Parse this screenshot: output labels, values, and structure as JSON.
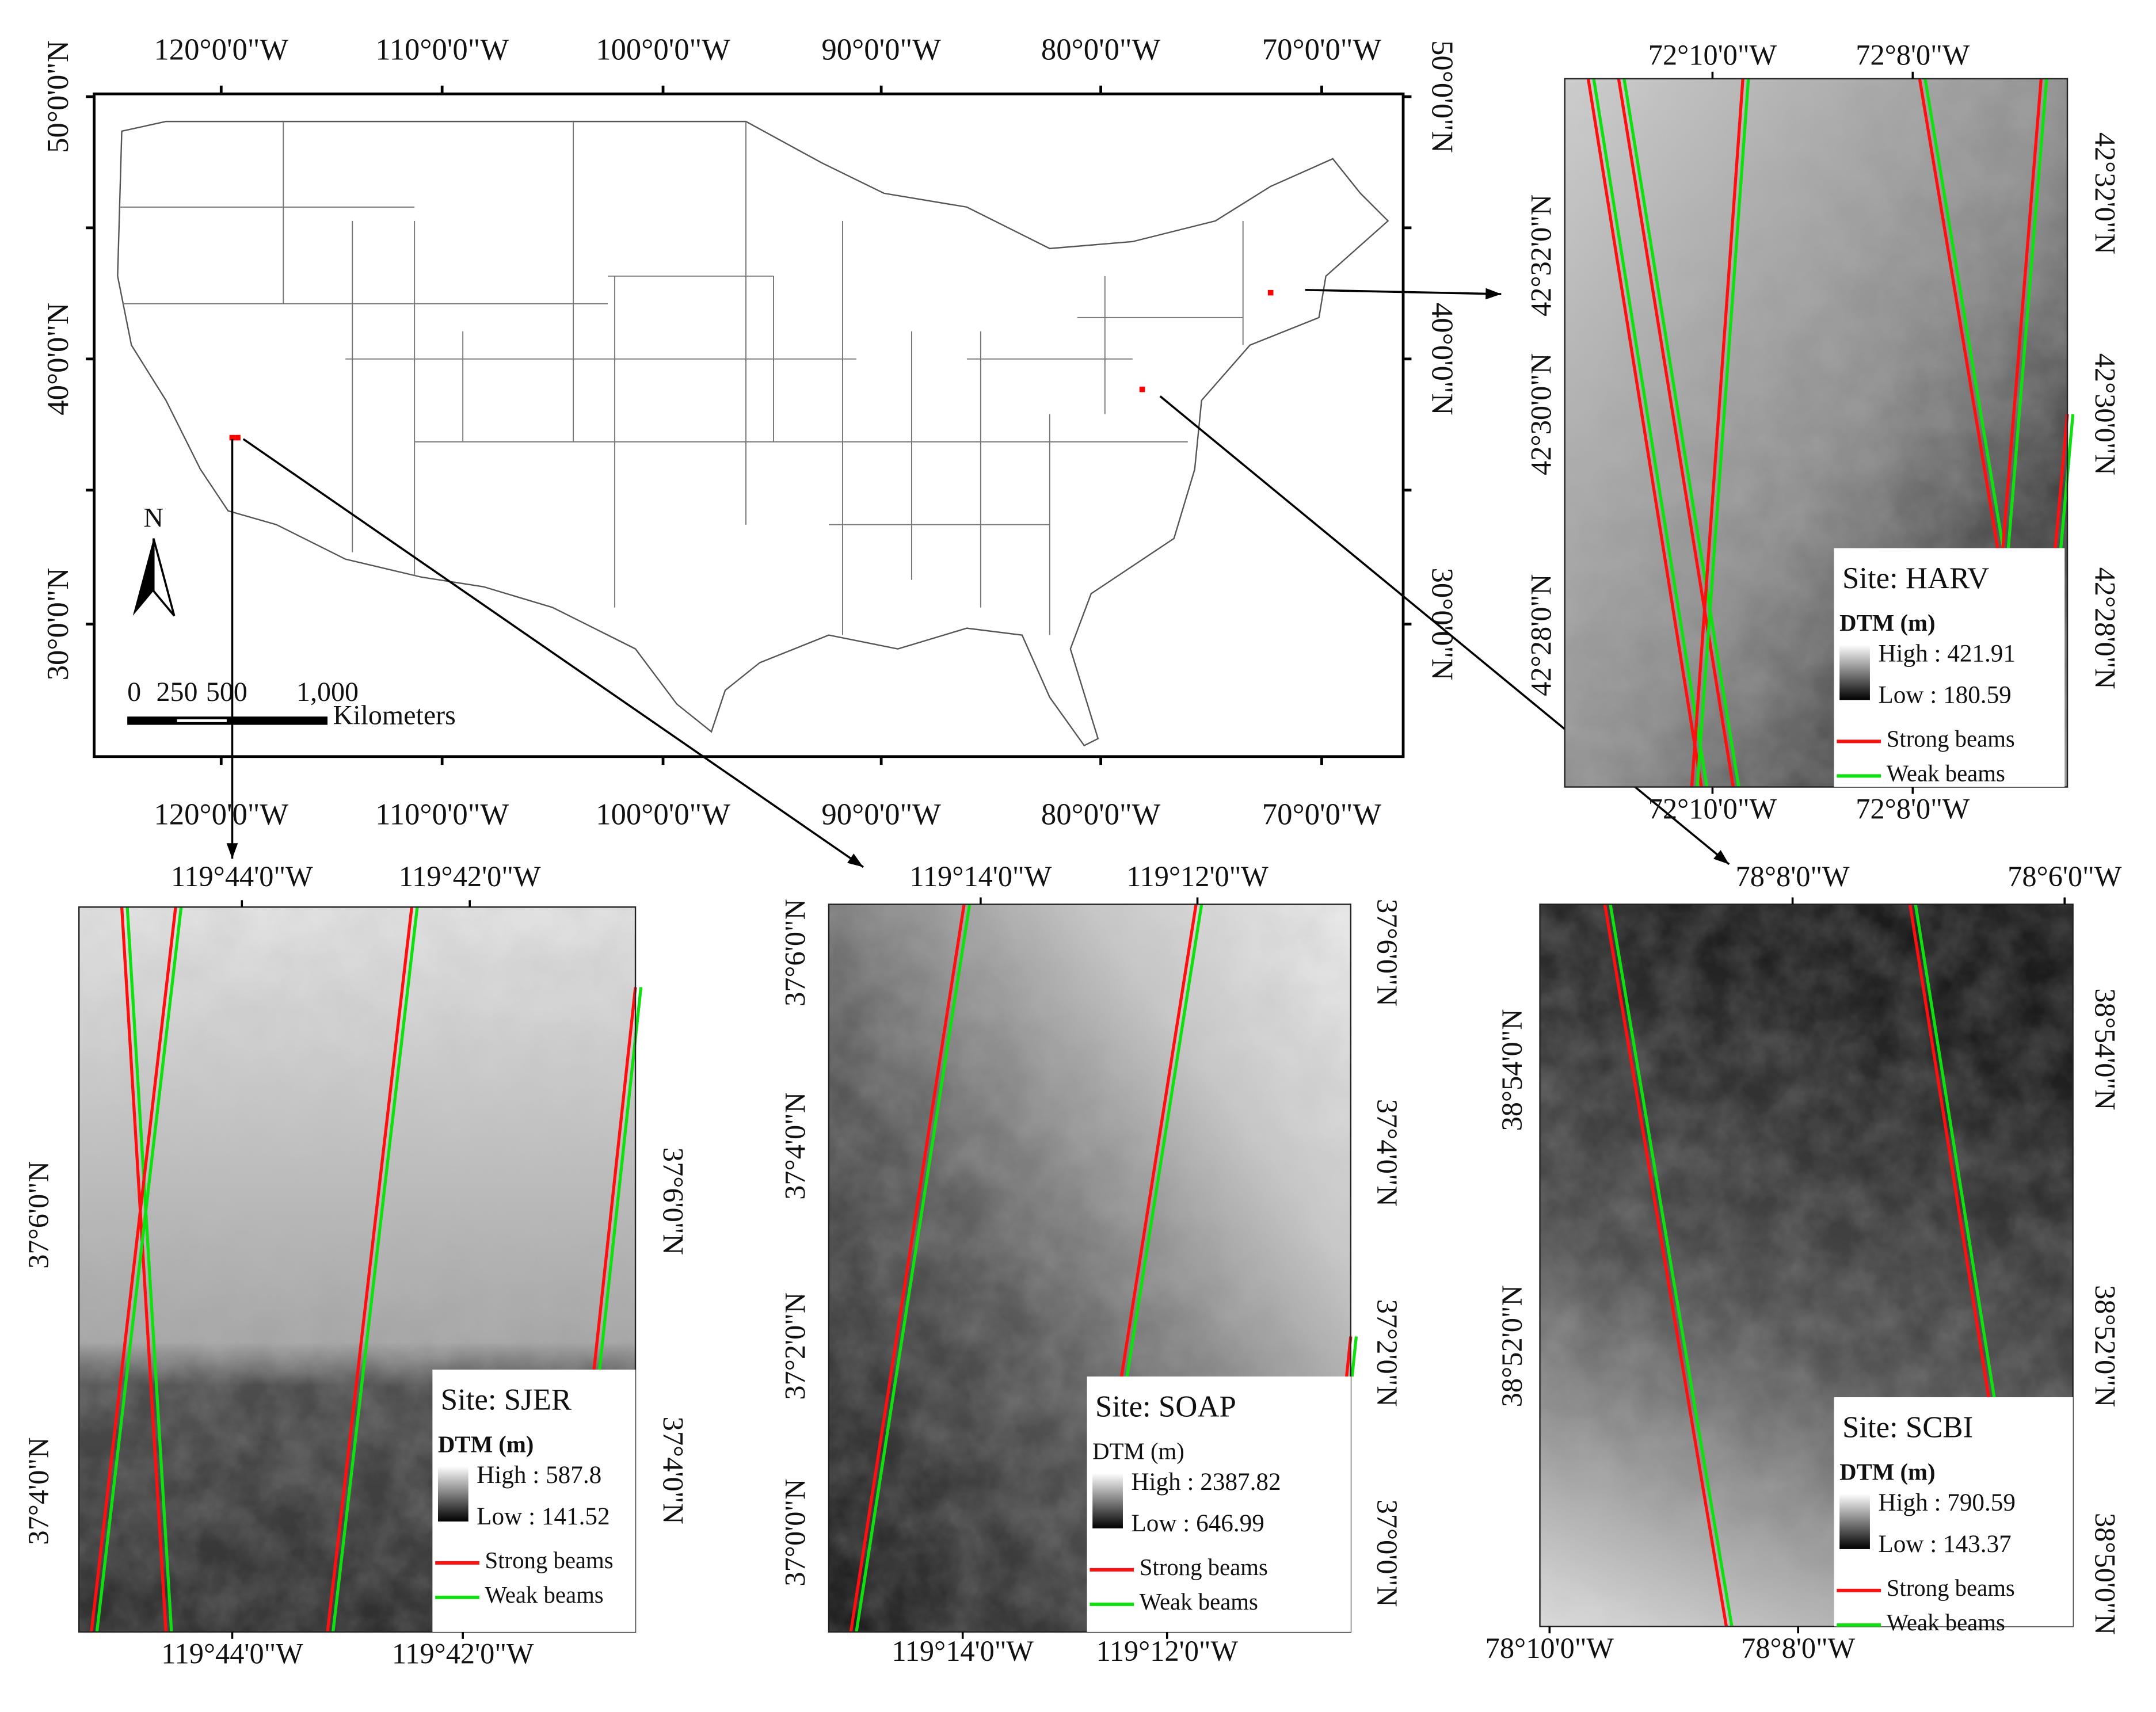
{
  "overview_map": {
    "x_labels": [
      "120°0'0\"W",
      "110°0'0\"W",
      "100°0'0\"W",
      "90°0'0\"W",
      "80°0'0\"W",
      "70°0'0\"W"
    ],
    "y_labels": [
      "50°0'0\"N",
      "40°0'0\"N",
      "30°0'0\"N"
    ],
    "north_arrow": "N",
    "scale_bar": {
      "labels": [
        "0",
        "250",
        "500",
        "1,000"
      ],
      "unit": "Kilometers"
    }
  },
  "panels": [
    {
      "site": "Site: HARV",
      "legend_title": "DTM (m)",
      "high": "High : 421.91",
      "low": "Low : 180.59",
      "strong": "Strong beams",
      "weak": "Weak beams",
      "top_labels": [
        "72°10'0\"W",
        "72°8'0\"W"
      ],
      "bottom_labels": [
        "72°10'0\"W",
        "72°8'0\"W"
      ],
      "left_labels": [
        "42°32'0\"N",
        "42°30'0\"N",
        "42°28'0\"N"
      ],
      "right_labels": [
        "42°32'0\"N",
        "42°30'0\"N",
        "42°28'0\"N"
      ]
    },
    {
      "site": "Site: SJER",
      "legend_title": "DTM (m)",
      "high": "High : 587.8",
      "low": "Low : 141.52",
      "strong": "Strong beams",
      "weak": "Weak beams",
      "top_labels": [
        "119°44'0\"W",
        "119°42'0\"W"
      ],
      "bottom_labels": [
        "119°44'0\"W",
        "119°42'0\"W"
      ],
      "left_labels": [
        "37°6'0\"N",
        "37°4'0\"N"
      ],
      "right_labels": [
        "37°6'0\"N",
        "37°4'0\"N"
      ]
    },
    {
      "site": "Site: SOAP",
      "legend_title": "DTM (m)",
      "high": "High : 2387.82",
      "low": "Low : 646.99",
      "strong": "Strong beams",
      "weak": "Weak beams",
      "top_labels": [
        "119°14'0\"W",
        "119°12'0\"W"
      ],
      "bottom_labels": [
        "119°14'0\"W",
        "119°12'0\"W"
      ],
      "left_labels": [
        "37°6'0\"N",
        "37°4'0\"N",
        "37°2'0\"N",
        "37°0'0\"N"
      ],
      "right_labels": [
        "37°6'0\"N",
        "37°4'0\"N",
        "37°2'0\"N",
        "37°0'0\"N"
      ]
    },
    {
      "site": "Site: SCBI",
      "legend_title": "DTM (m)",
      "high": "High : 790.59",
      "low": "Low : 143.37",
      "strong": "Strong beams",
      "weak": "Weak beams",
      "top_labels": [
        "78°8'0\"W",
        "78°6'0\"W"
      ],
      "bottom_labels": [
        "78°10'0\"W",
        "78°8'0\"W"
      ],
      "left_labels": [
        "38°54'0\"N",
        "38°52'0\"N"
      ],
      "right_labels": [
        "38°54'0\"N",
        "38°52'0\"N",
        "38°50'0\"N"
      ]
    }
  ]
}
